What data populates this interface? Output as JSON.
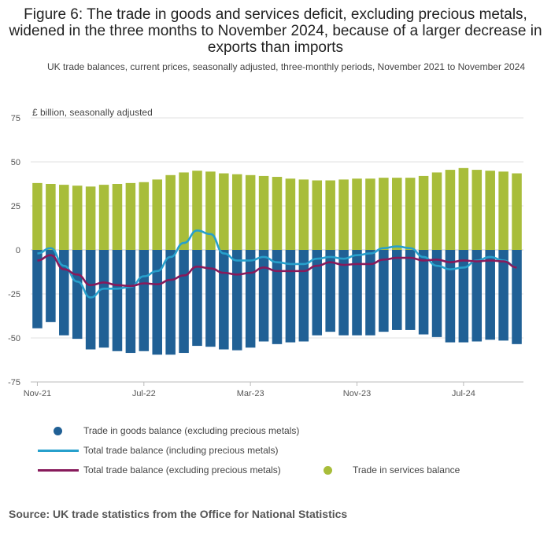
{
  "title": "Figure 6: The trade in goods and services deficit, excluding precious metals, widened in the three months to November 2024, because of a larger decrease in exports than imports",
  "subtitle": "UK trade balances, current prices, seasonally adjusted, three-monthly periods, November 2021 to November 2024",
  "source": "Source: UK trade statistics from the Office for National Statistics",
  "colors": {
    "goods": "#206095",
    "services": "#a8bd3a",
    "total_incl": "#27a0cc",
    "total_excl": "#871a5b",
    "grid": "#e0e0e0",
    "axis": "#bbbbbb"
  },
  "legend": {
    "goods": "Trade in goods balance (excluding precious metals)",
    "total_incl": "Total trade balance (including precious metals)",
    "total_excl": "Total trade balance (excluding precious metals)",
    "services": "Trade in services balance"
  },
  "chart_data": {
    "type": "bar",
    "ylabel": "£ billion, seasonally adjusted",
    "ylim": [
      -75,
      75
    ],
    "yticks": [
      75,
      50,
      25,
      0,
      -25,
      -50,
      -75
    ],
    "xtick_labels": [
      "Nov-21",
      "Jul-22",
      "Mar-23",
      "Nov-23",
      "Jul-24"
    ],
    "xtick_indices": [
      0,
      8,
      16,
      24,
      32
    ],
    "categories": [
      "Nov-21",
      "Dec-21",
      "Jan-22",
      "Feb-22",
      "Mar-22",
      "Apr-22",
      "May-22",
      "Jun-22",
      "Jul-22",
      "Aug-22",
      "Sep-22",
      "Oct-22",
      "Nov-22",
      "Dec-22",
      "Jan-23",
      "Feb-23",
      "Mar-23",
      "Apr-23",
      "May-23",
      "Jun-23",
      "Jul-23",
      "Aug-23",
      "Sep-23",
      "Oct-23",
      "Nov-23",
      "Dec-23",
      "Jan-24",
      "Feb-24",
      "Mar-24",
      "Apr-24",
      "May-24",
      "Jun-24",
      "Jul-24",
      "Aug-24",
      "Sep-24",
      "Oct-24",
      "Nov-24"
    ],
    "series": [
      {
        "name": "Trade in goods balance (excluding precious metals)",
        "kind": "bar",
        "values": [
          -44.5,
          -41,
          -48.5,
          -50.5,
          -56.5,
          -55.5,
          -57.5,
          -58.5,
          -57.5,
          -59.5,
          -59.5,
          -58.5,
          -54.5,
          -55,
          -56.5,
          -57,
          -55.5,
          -52,
          -53.5,
          -52.5,
          -52,
          -48.5,
          -46.5,
          -48.5,
          -48.5,
          -48.5,
          -46.5,
          -45.5,
          -45.5,
          -48,
          -49.5,
          -52.5,
          -52.5,
          -52,
          -51,
          -51.5,
          -53.5
        ]
      },
      {
        "name": "Trade in services balance",
        "kind": "bar",
        "values": [
          38,
          37.5,
          37,
          36.5,
          36,
          37,
          37.5,
          38,
          38.5,
          40,
          42.5,
          44,
          45,
          44.5,
          43.5,
          43,
          42.5,
          42,
          41.5,
          40.5,
          40,
          39.5,
          39.5,
          40,
          40.5,
          40.5,
          41,
          41,
          41,
          42,
          44,
          45.5,
          46.5,
          45.5,
          45,
          44.5,
          43.5
        ]
      },
      {
        "name": "Total trade balance (including precious metals)",
        "kind": "line",
        "values": [
          -2,
          1,
          -9,
          -18,
          -27,
          -22,
          -22,
          -21,
          -15,
          -12,
          -4,
          4,
          11,
          9,
          -2,
          -6,
          -6,
          -4,
          -7,
          -8,
          -8,
          -5,
          -4,
          -5,
          -3,
          -2,
          1,
          2,
          1,
          -4,
          -9,
          -11,
          -10,
          -6,
          -4,
          -6,
          -10
        ]
      },
      {
        "name": "Total trade balance (excluding precious metals)",
        "kind": "line",
        "values": [
          -6,
          -3,
          -11,
          -14,
          -20,
          -18.5,
          -20,
          -20.5,
          -19,
          -19.5,
          -17,
          -14.5,
          -9.5,
          -10.5,
          -13,
          -14,
          -13,
          -10,
          -12,
          -12,
          -12,
          -9,
          -7,
          -8.5,
          -8,
          -8,
          -5.5,
          -4.5,
          -4.5,
          -6,
          -5.5,
          -7,
          -6,
          -6.5,
          -6,
          -6.5,
          -10
        ]
      }
    ]
  }
}
